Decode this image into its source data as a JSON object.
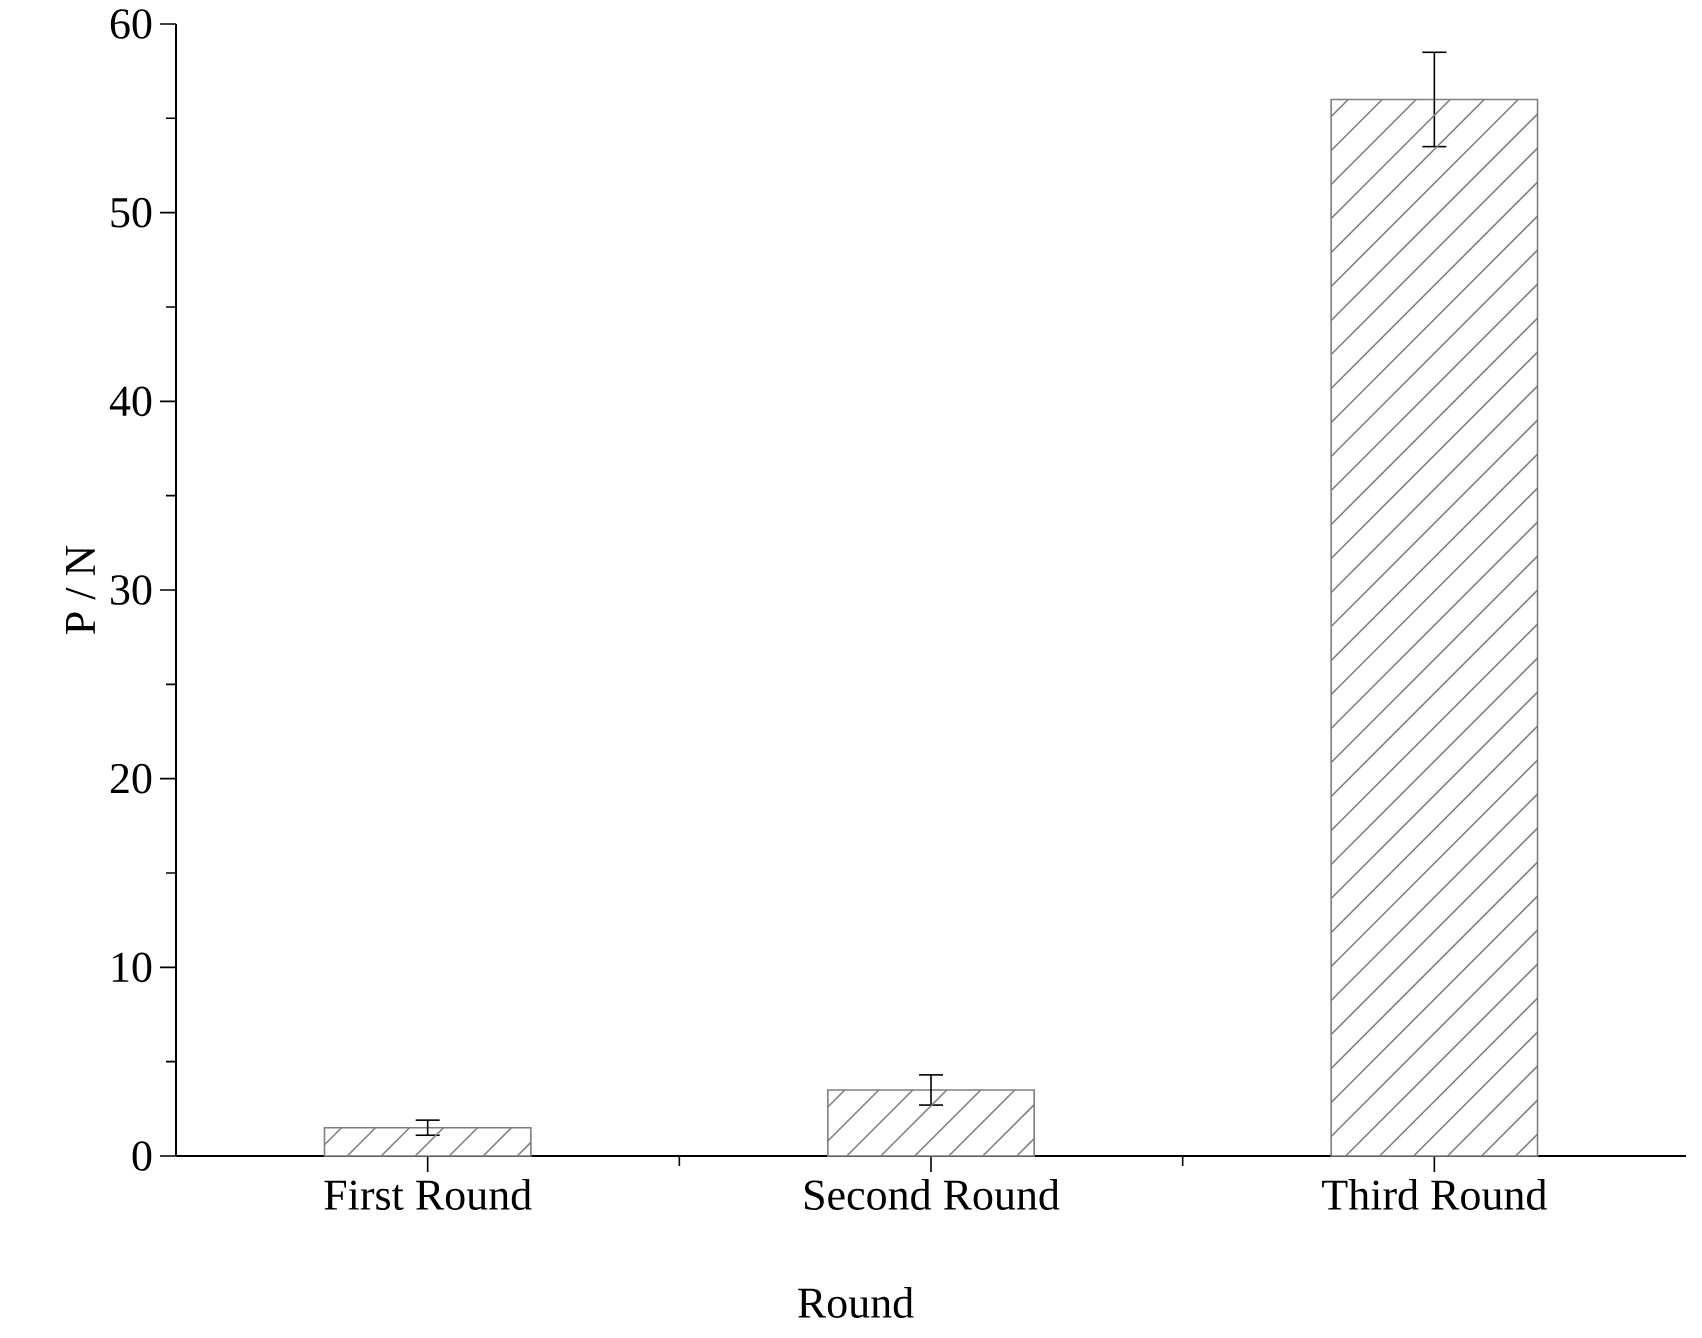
{
  "chart_data": {
    "type": "bar",
    "xlabel": "Round",
    "ylabel": "P / N",
    "categories": [
      "First Round",
      "Second Round",
      "Third Round"
    ],
    "values": [
      1.5,
      3.5,
      56
    ],
    "errors": [
      0.4,
      0.8,
      2.5
    ],
    "color": "#7f7f7f",
    "ylim": [
      0,
      60
    ],
    "yticks": [
      0,
      10,
      20,
      30,
      40,
      50,
      60
    ],
    "grid": false
  }
}
